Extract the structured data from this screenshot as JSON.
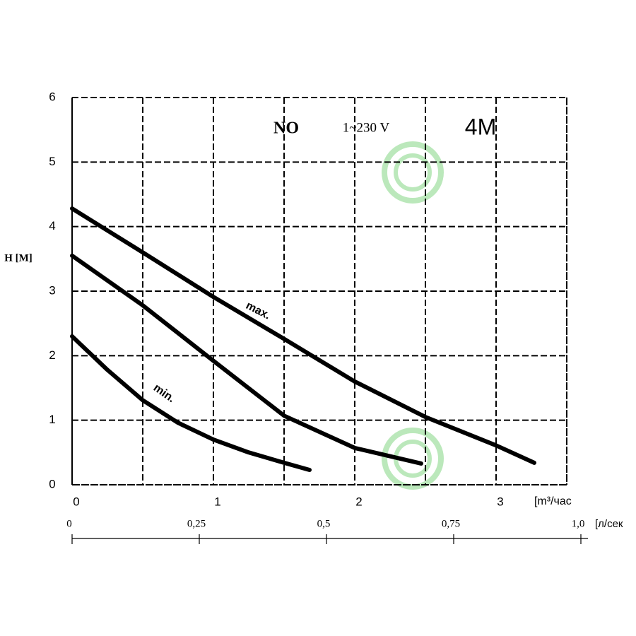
{
  "chart_data": {
    "type": "line",
    "annotations": {
      "model": "NO",
      "voltage": "1~230 V",
      "variant": "4M"
    },
    "ylabel": "H [M]",
    "xlabel": "[m³/час",
    "x2label": "[л/сек",
    "xlim": [
      0,
      3.5
    ],
    "ylim": [
      0,
      6
    ],
    "xticks": [
      0,
      1,
      2,
      3
    ],
    "xminor": [
      0.5,
      1.5,
      2.5,
      3.5
    ],
    "yticks": [
      0,
      1,
      2,
      3,
      4,
      5,
      6
    ],
    "x2lim": [
      0,
      1
    ],
    "x2ticks": [
      0,
      {
        "value": 0.25,
        "label": "0,25"
      },
      {
        "value": 0.5,
        "label": "0,5"
      },
      {
        "value": 0.75,
        "label": "0,75"
      },
      {
        "value": 1.0,
        "label": "1,0"
      }
    ],
    "grid": true,
    "series": [
      {
        "name": "max.",
        "color": "#000000",
        "x": [
          0,
          0.5,
          1,
          1.5,
          2,
          2.5,
          3,
          3.27
        ],
        "values": [
          4.28,
          3.6,
          2.91,
          2.26,
          1.6,
          1.05,
          0.61,
          0.34
        ]
      },
      {
        "name": null,
        "color": "#000000",
        "x": [
          0,
          0.5,
          1,
          1.5,
          2,
          2.47
        ],
        "values": [
          3.55,
          2.78,
          1.92,
          1.07,
          0.57,
          0.33
        ]
      },
      {
        "name": "min.",
        "color": "#000000",
        "x": [
          0,
          0.25,
          0.5,
          0.75,
          1,
          1.25,
          1.5,
          1.68
        ],
        "values": [
          2.3,
          1.78,
          1.31,
          0.96,
          0.7,
          0.5,
          0.34,
          0.23
        ]
      }
    ]
  }
}
